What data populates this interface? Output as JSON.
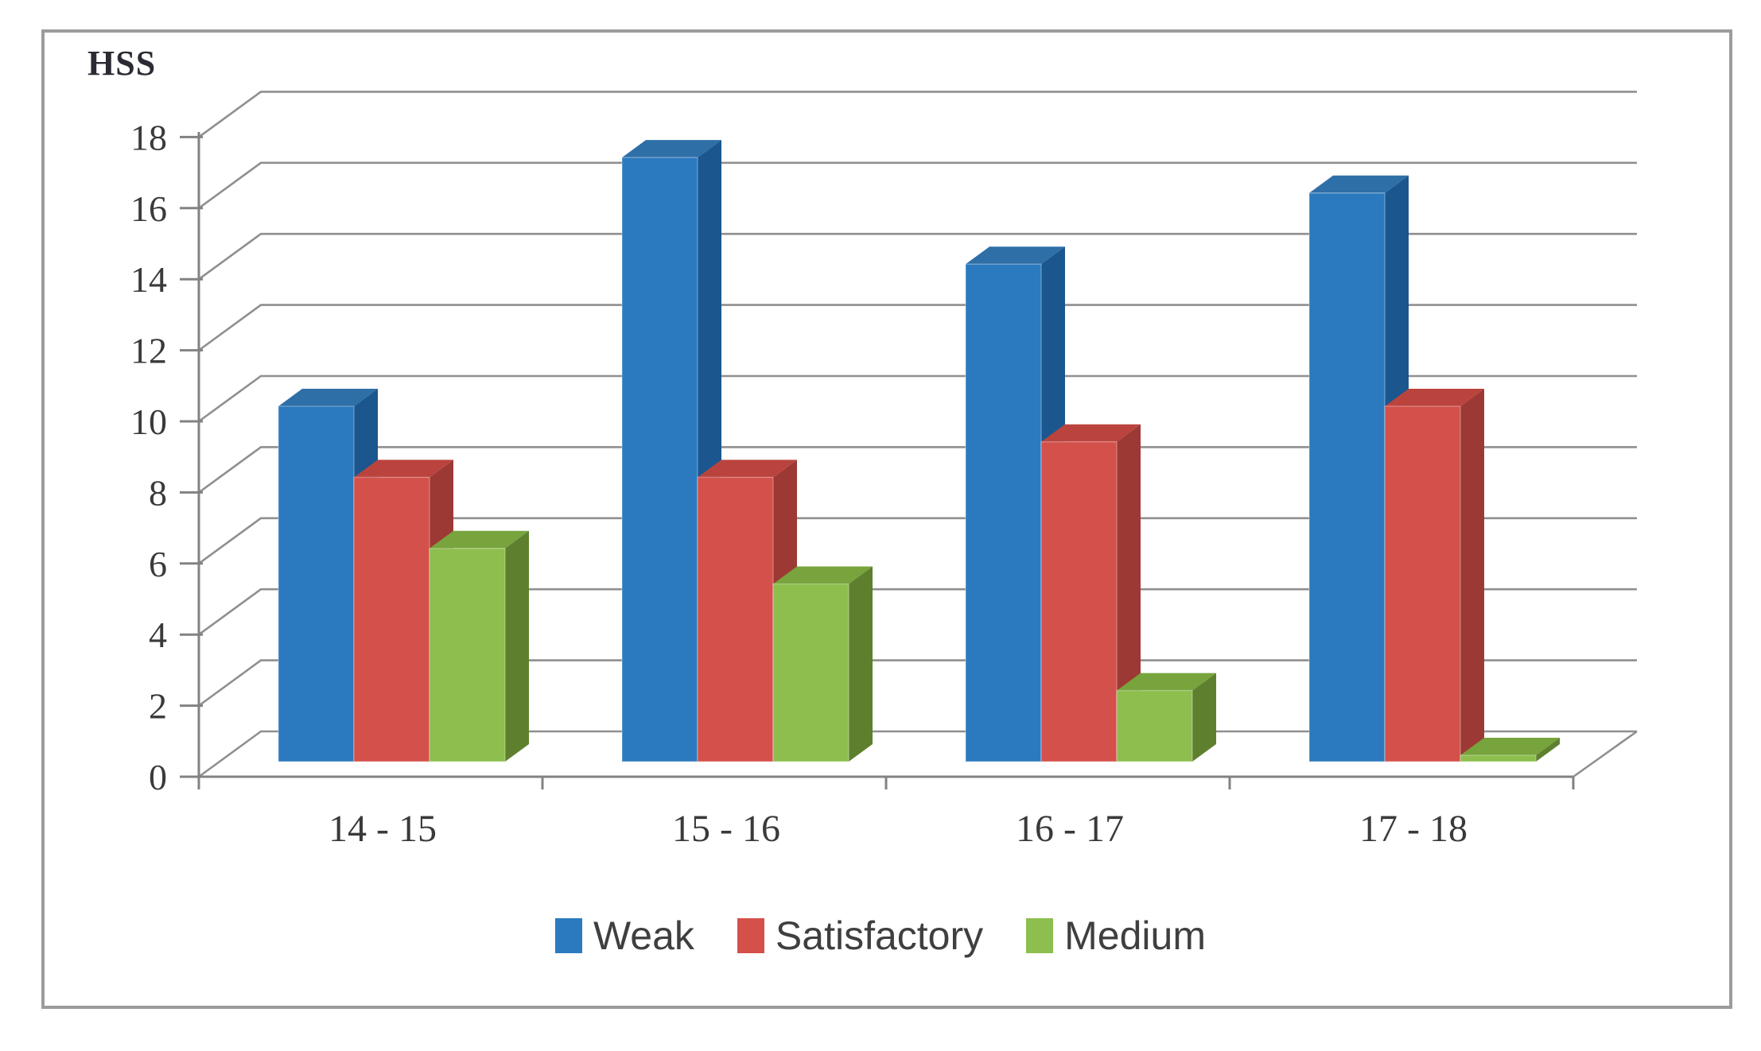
{
  "chart_data": {
    "type": "bar",
    "projection": "3d",
    "title": "HSS",
    "ylabel": "HSS",
    "xlabel": "",
    "categories": [
      "14 - 15",
      "15 - 16",
      "16 - 17",
      "17 - 18"
    ],
    "series": [
      {
        "name": "Weak",
        "color": "#2b7abf",
        "color_top": "#2f6fa8",
        "color_side": "#1b578e",
        "values": [
          10,
          17,
          14,
          16
        ]
      },
      {
        "name": "Satisfactory",
        "color": "#d4504a",
        "color_top": "#bb433e",
        "color_side": "#9d3935",
        "values": [
          8,
          8,
          9,
          10
        ]
      },
      {
        "name": "Medium",
        "color": "#8dbe4e",
        "color_top": "#77a43c",
        "color_side": "#5e802e",
        "values": [
          6,
          5,
          2,
          0
        ]
      }
    ],
    "y_ticks": [
      0,
      2,
      4,
      6,
      8,
      10,
      12,
      14,
      16,
      18
    ],
    "ylim": [
      0,
      18
    ],
    "grid": true,
    "legend_position": "bottom",
    "colors": {
      "gridline": "#8f8f8f",
      "axis": "#828282",
      "tick_label": "#3a3a3a",
      "frame_border": "#9c9c9c",
      "background": "#ffffff"
    }
  }
}
